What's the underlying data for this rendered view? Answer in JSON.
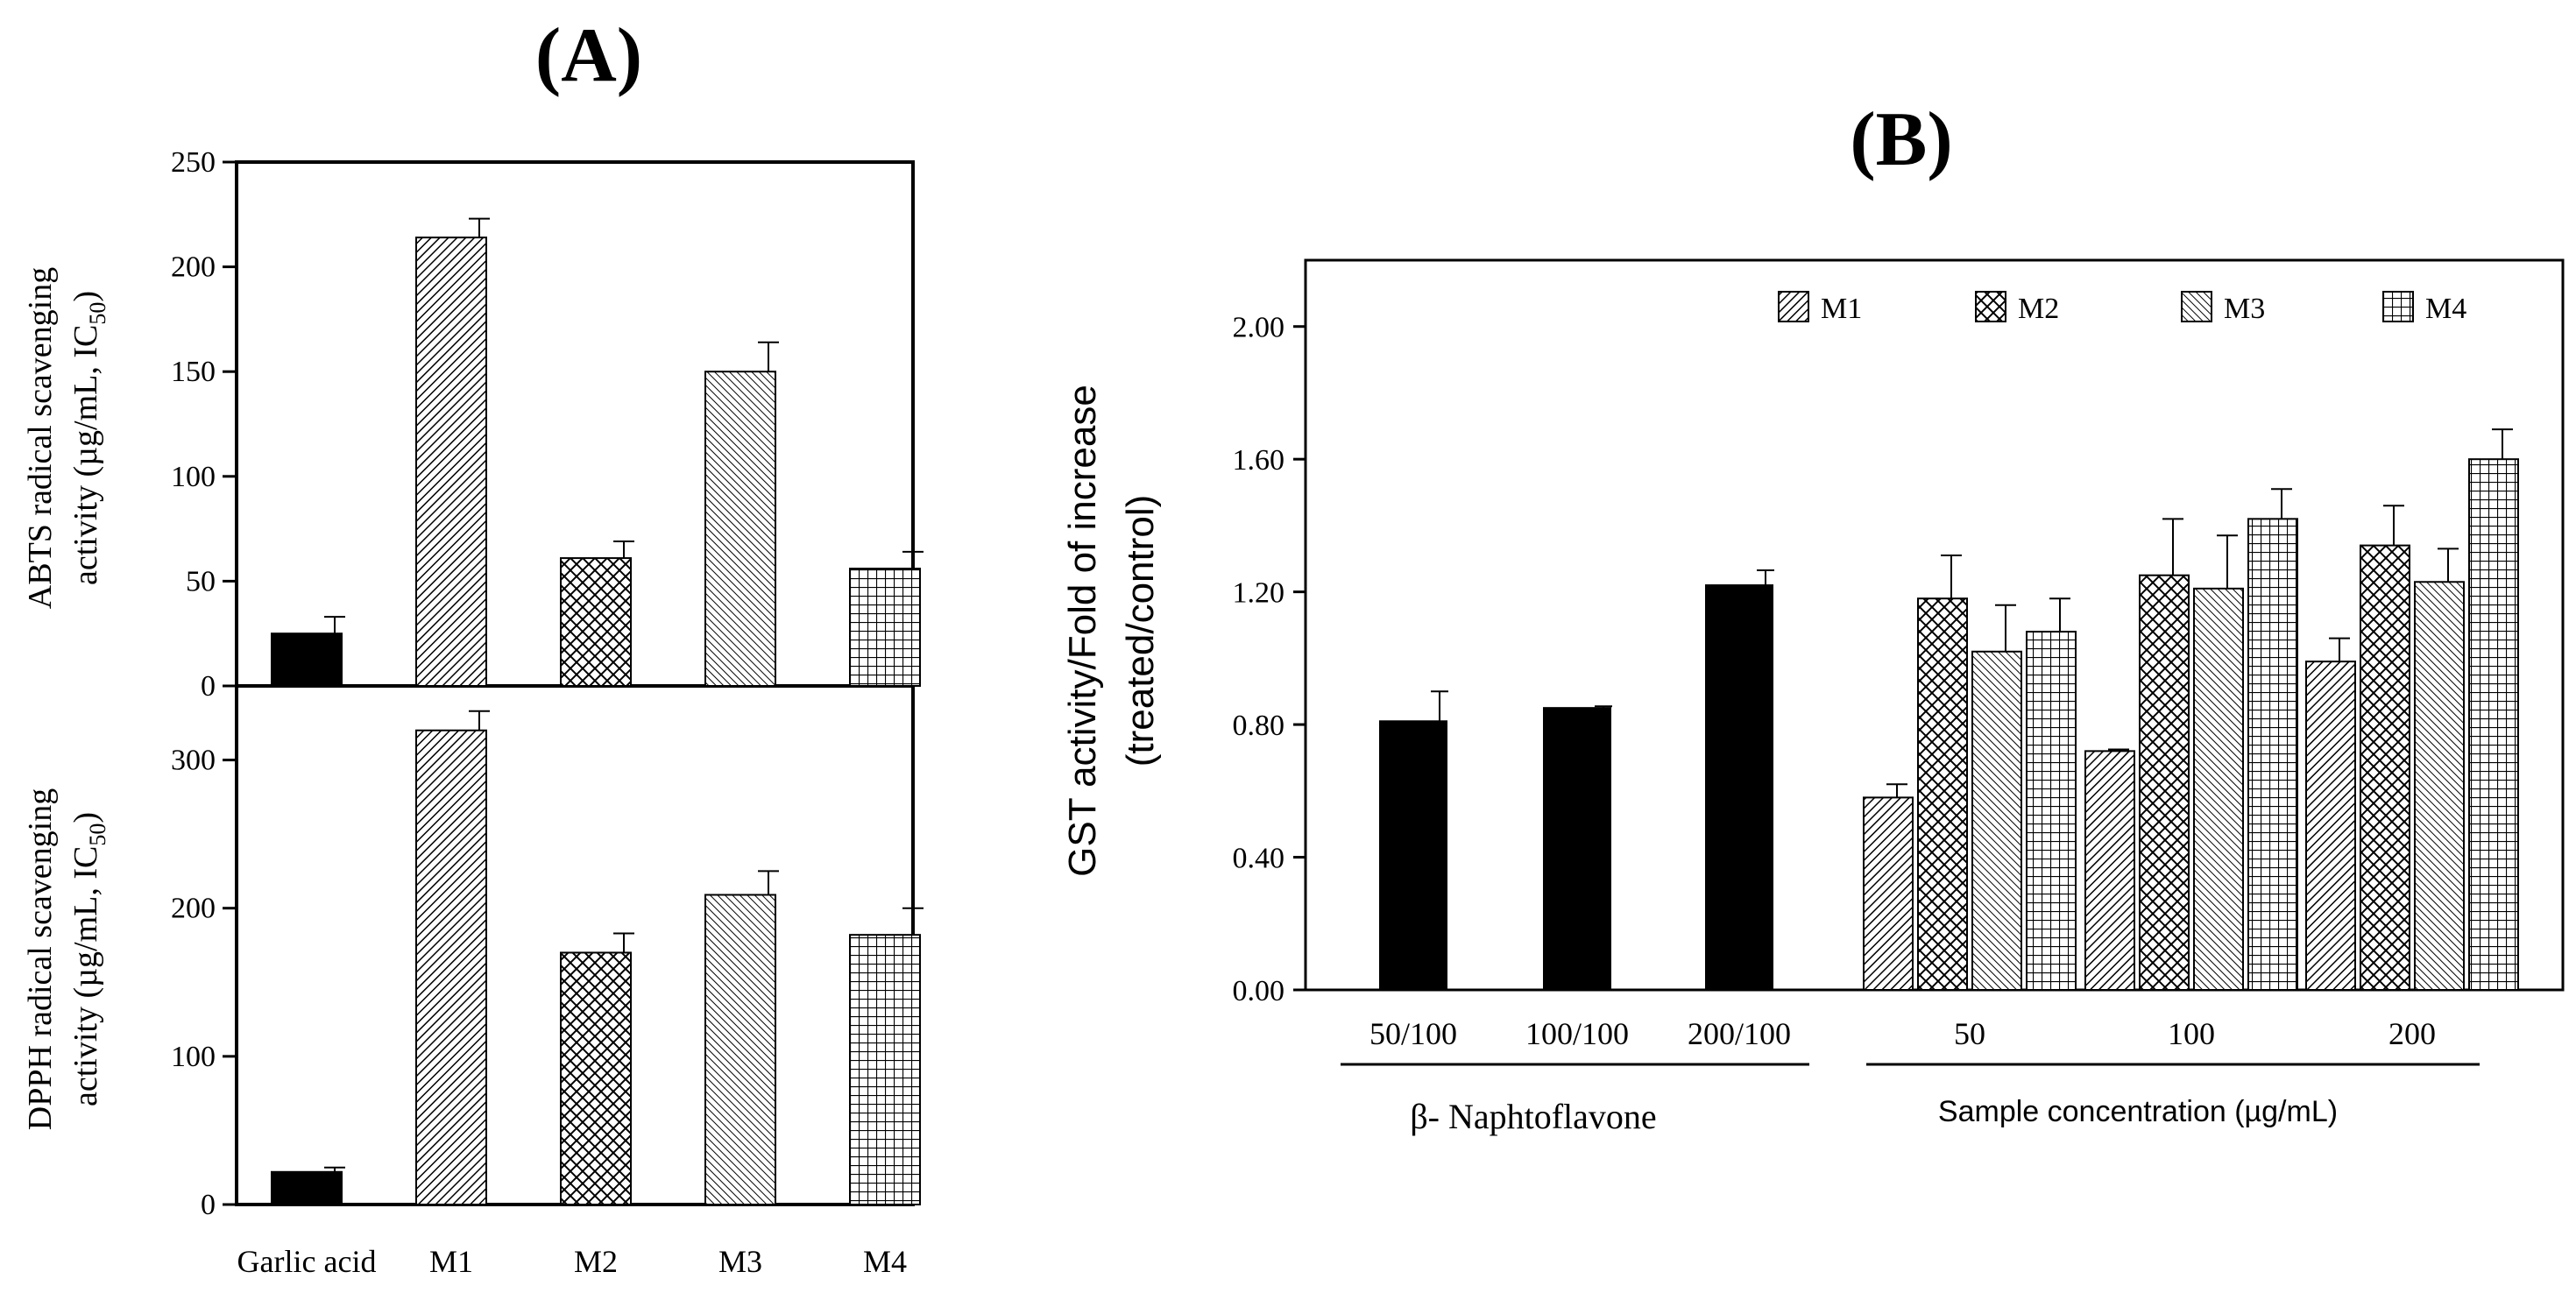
{
  "patterns": {
    "M1": "diag-dense",
    "M2": "crosshatch",
    "M3": "diag-fine",
    "M4": "grid",
    "control": "solid"
  },
  "chart_data": [
    {
      "type": "bar",
      "panel": "A",
      "panel_label": "(A)",
      "subplot": "top",
      "ylabel_lines": [
        "ABTS radical scavenging",
        "activity (µg/mL, IC"
      ],
      "ylabel_sub": "50",
      "ylabel_close": ")",
      "ylim": [
        0,
        250
      ],
      "yticks": [
        0,
        50,
        100,
        150,
        200,
        250
      ],
      "categories": [
        "Garlic acid",
        "M1",
        "M2",
        "M3",
        "M4"
      ],
      "values": [
        25,
        214,
        61,
        150,
        56
      ],
      "errors": [
        8,
        9,
        8,
        14,
        8
      ],
      "fills": [
        "control",
        "M1",
        "M2",
        "M3",
        "M4"
      ]
    },
    {
      "type": "bar",
      "panel": "A",
      "subplot": "bottom",
      "ylabel_lines": [
        "DPPH radical scavenging",
        "activity (µg/mL, IC"
      ],
      "ylabel_sub": "50",
      "ylabel_close": ")",
      "ylim": [
        0,
        350
      ],
      "yticks": [
        0,
        100,
        200,
        300
      ],
      "categories": [
        "Garlic acid",
        "M1",
        "M2",
        "M3",
        "M4"
      ],
      "values": [
        22,
        320,
        170,
        209,
        182
      ],
      "errors": [
        3,
        13,
        13,
        16,
        18
      ],
      "fills": [
        "control",
        "M1",
        "M2",
        "M3",
        "M4"
      ]
    },
    {
      "type": "bar",
      "panel": "B",
      "panel_label": "(B)",
      "ylabel_lines": [
        "GST activity/Fold of increase",
        "(treated/control)"
      ],
      "ylim": [
        0,
        2.2
      ],
      "yticks": [
        "0.00",
        "0.40",
        "0.80",
        "1.20",
        "1.60",
        "2.00"
      ],
      "legend": [
        "M1",
        "M2",
        "M3",
        "M4"
      ],
      "control_categories": [
        "50/100",
        "100/100",
        "200/100"
      ],
      "control_values": [
        0.81,
        0.85,
        1.22
      ],
      "control_errors": [
        0.09,
        0.005,
        0.045
      ],
      "categories": [
        "50",
        "100",
        "200"
      ],
      "series": [
        {
          "name": "M1",
          "values": [
            0.58,
            0.72,
            0.99
          ],
          "errors": [
            0.04,
            0.005,
            0.07
          ]
        },
        {
          "name": "M2",
          "values": [
            1.18,
            1.25,
            1.34
          ],
          "errors": [
            0.13,
            0.17,
            0.12
          ]
        },
        {
          "name": "M3",
          "values": [
            1.02,
            1.21,
            1.23
          ],
          "errors": [
            0.14,
            0.16,
            0.1
          ]
        },
        {
          "name": "M4",
          "values": [
            1.08,
            1.42,
            1.6
          ],
          "errors": [
            0.1,
            0.09,
            0.09
          ]
        }
      ],
      "group_labels": [
        "β- Naphtoflavone",
        "Sample concentration  (µg/mL)"
      ]
    }
  ]
}
